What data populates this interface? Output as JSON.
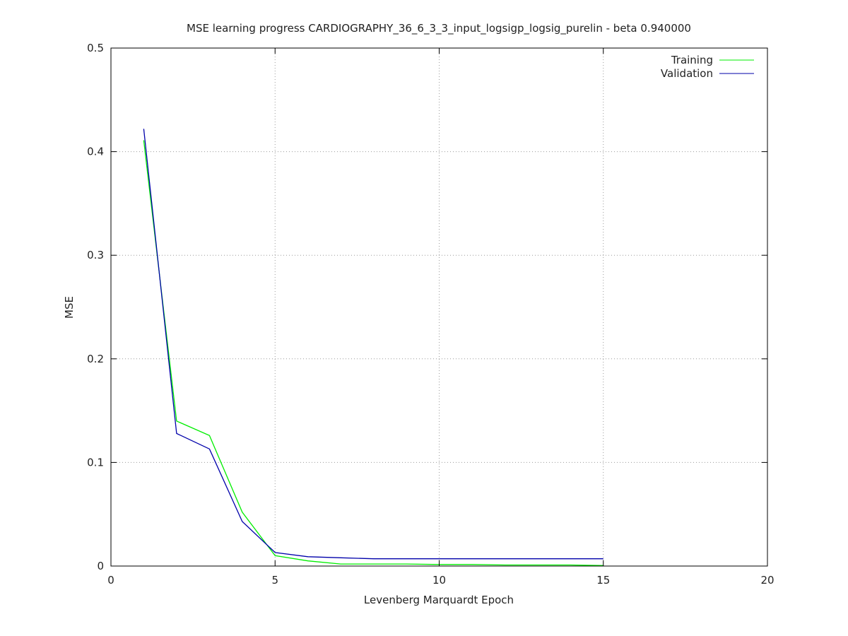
{
  "chart_data": {
    "type": "line",
    "title": "MSE learning progress CARDIOGRAPHY_36_6_3_3_input_logsigp_logsig_purelin -  beta 0.940000",
    "xlabel": "Levenberg Marquardt Epoch",
    "ylabel": "MSE",
    "xlim": [
      0,
      20
    ],
    "ylim": [
      0,
      0.5
    ],
    "xticks": [
      0,
      5,
      10,
      15,
      20
    ],
    "yticks": [
      0,
      0.1,
      0.2,
      0.3,
      0.4,
      0.5
    ],
    "xtick_labels": [
      "0",
      "5",
      "10",
      "15",
      "20"
    ],
    "ytick_labels": [
      "0",
      "0.1",
      "0.2",
      "0.3",
      "0.4",
      "0.5"
    ],
    "grid": true,
    "legend_position": "top-right",
    "series": [
      {
        "name": "Training",
        "color": "#00ee00",
        "x": [
          1,
          2,
          3,
          4,
          5,
          6,
          7,
          8,
          9,
          10,
          11,
          12,
          13,
          14,
          15
        ],
        "y": [
          0.411,
          0.14,
          0.126,
          0.052,
          0.01,
          0.005,
          0.002,
          0.002,
          0.002,
          0.0015,
          0.0015,
          0.001,
          0.001,
          0.001,
          0.0005
        ]
      },
      {
        "name": "Validation",
        "color": "#0000aa",
        "x": [
          1,
          2,
          3,
          4,
          5,
          6,
          7,
          8,
          9,
          10,
          11,
          12,
          13,
          14,
          15
        ],
        "y": [
          0.422,
          0.128,
          0.113,
          0.043,
          0.013,
          0.009,
          0.008,
          0.007,
          0.007,
          0.007,
          0.007,
          0.007,
          0.007,
          0.007,
          0.007
        ]
      }
    ]
  }
}
